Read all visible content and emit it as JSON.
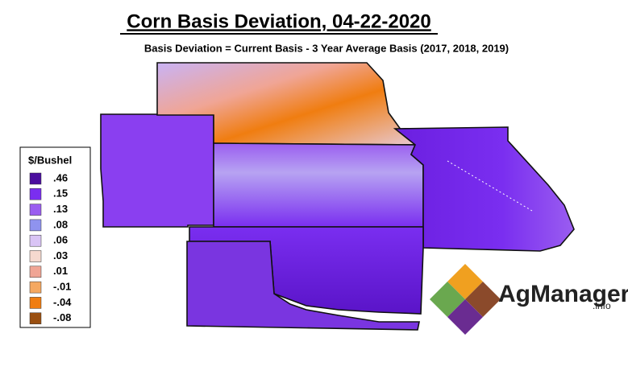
{
  "title": "Corn Basis Deviation, 04-22-2020",
  "subtitle": "Basis Deviation = Current Basis - 3 Year Average Basis (2017, 2018, 2019)",
  "legend": {
    "title": "$/Bushel",
    "items": [
      {
        "label": ".46",
        "color": "#4b0e9e"
      },
      {
        "label": ".15",
        "color": "#7a2ef0"
      },
      {
        "label": ".13",
        "color": "#9a5df0"
      },
      {
        "label": ".08",
        "color": "#8f93ef"
      },
      {
        "label": ".06",
        "color": "#d9c4f5"
      },
      {
        "label": ".03",
        "color": "#f5d9cf"
      },
      {
        "label": ".01",
        "color": "#f0a595"
      },
      {
        "label": "-.01",
        "color": "#f5a860"
      },
      {
        "label": "-.04",
        "color": "#f07d10"
      },
      {
        "label": "-.08",
        "color": "#9a4f10"
      }
    ]
  },
  "logo": {
    "name": "AgManager",
    "suffix": ".info"
  }
}
